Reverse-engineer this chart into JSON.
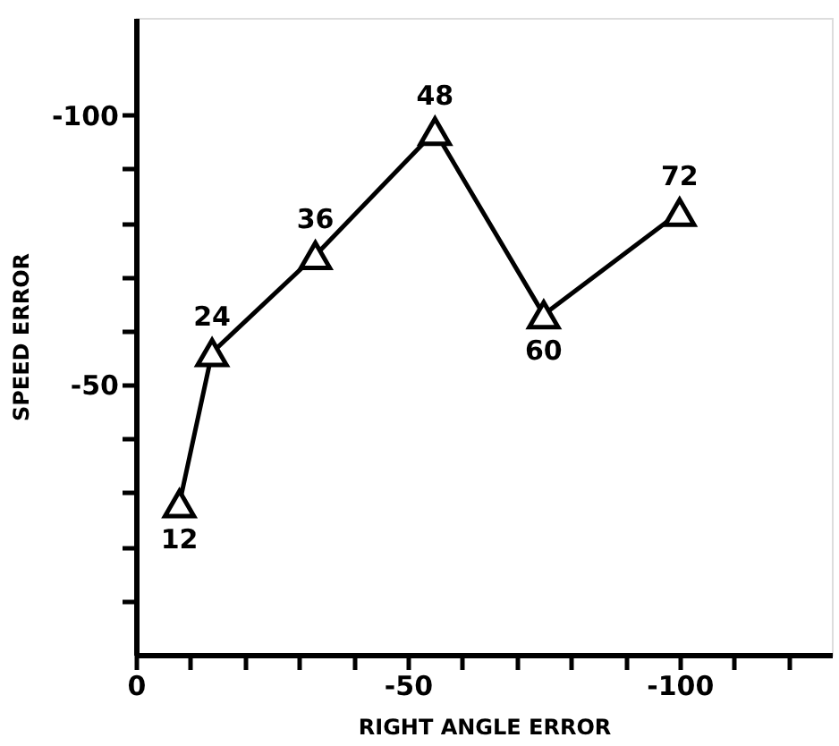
{
  "chart_data": {
    "type": "line",
    "xlabel": "RIGHT ANGLE ERROR",
    "ylabel": "SPEED ERROR",
    "x": [
      -8,
      -14,
      -33,
      -55,
      -75,
      -100
    ],
    "values": [
      -28,
      -56,
      -74,
      -97,
      -63,
      -82
    ],
    "color": "#000000",
    "marker": "triangle",
    "line_style": "solid",
    "grid": false,
    "xlim": [
      0,
      -128
    ],
    "xticks": [
      0,
      {
        "value": -10,
        "label": null
      },
      {
        "value": -20,
        "label": null
      },
      {
        "value": -30,
        "label": null
      },
      {
        "value": -40,
        "label": null
      },
      -50,
      {
        "value": -60,
        "label": null
      },
      {
        "value": -70,
        "label": null
      },
      {
        "value": -80,
        "label": null
      },
      {
        "value": -90,
        "label": null
      },
      -100,
      {
        "value": -110,
        "label": null
      },
      {
        "value": -120,
        "label": null
      }
    ],
    "ylim": [
      0,
      -118
    ],
    "yticks": [
      {
        "value": -10,
        "label": null
      },
      {
        "value": -20,
        "label": null
      },
      {
        "value": -30,
        "label": null
      },
      {
        "value": -40,
        "label": null
      },
      -50,
      {
        "value": -60,
        "label": null
      },
      {
        "value": -70,
        "label": null
      },
      {
        "value": -80,
        "label": null
      },
      {
        "value": -90,
        "label": null
      },
      -100
    ],
    "annotations": [
      {
        "text": "12",
        "x": -8,
        "y": -28
      },
      {
        "text": "24",
        "x": -14,
        "y": -56
      },
      {
        "text": "36",
        "x": -33,
        "y": -74
      },
      {
        "text": "48",
        "x": -55,
        "y": -97
      },
      {
        "text": "60",
        "x": -75,
        "y": -63
      },
      {
        "text": "72",
        "x": -100,
        "y": -82
      }
    ]
  }
}
